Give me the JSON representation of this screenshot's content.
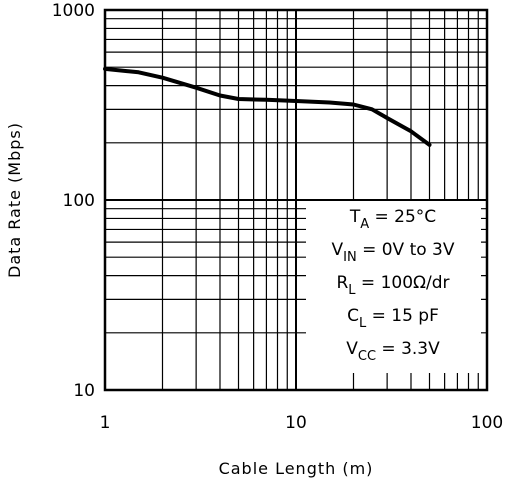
{
  "chart_data": {
    "type": "line",
    "title": "",
    "xlabel": "Cable Length (m)",
    "ylabel": "Data Rate (Mbps)",
    "x_scale": "log",
    "y_scale": "log",
    "xlim": [
      1,
      100
    ],
    "ylim": [
      10,
      1000
    ],
    "grid": true,
    "x_ticks": [
      "1",
      "10",
      "100"
    ],
    "y_ticks": [
      "10",
      "100",
      "1000"
    ],
    "series": [
      {
        "x": [
          1,
          1.5,
          2,
          3,
          4,
          5,
          7,
          10,
          15,
          20,
          25,
          30,
          40,
          50
        ],
        "y": [
          490,
          470,
          440,
          390,
          355,
          340,
          337,
          332,
          326,
          318,
          300,
          270,
          230,
          195
        ]
      }
    ],
    "annotation": {
      "lines": [
        {
          "main": "T",
          "sub": "A",
          "rest": " = 25°C"
        },
        {
          "main": "V",
          "sub": "IN",
          "rest": " = 0V to 3V"
        },
        {
          "main": "R",
          "sub": "L",
          "rest": " = 100Ω/dr"
        },
        {
          "main": "C",
          "sub": "L",
          "rest": " = 15 pF"
        },
        {
          "main": "V",
          "sub": "CC",
          "rest": " = 3.3V"
        }
      ]
    }
  }
}
